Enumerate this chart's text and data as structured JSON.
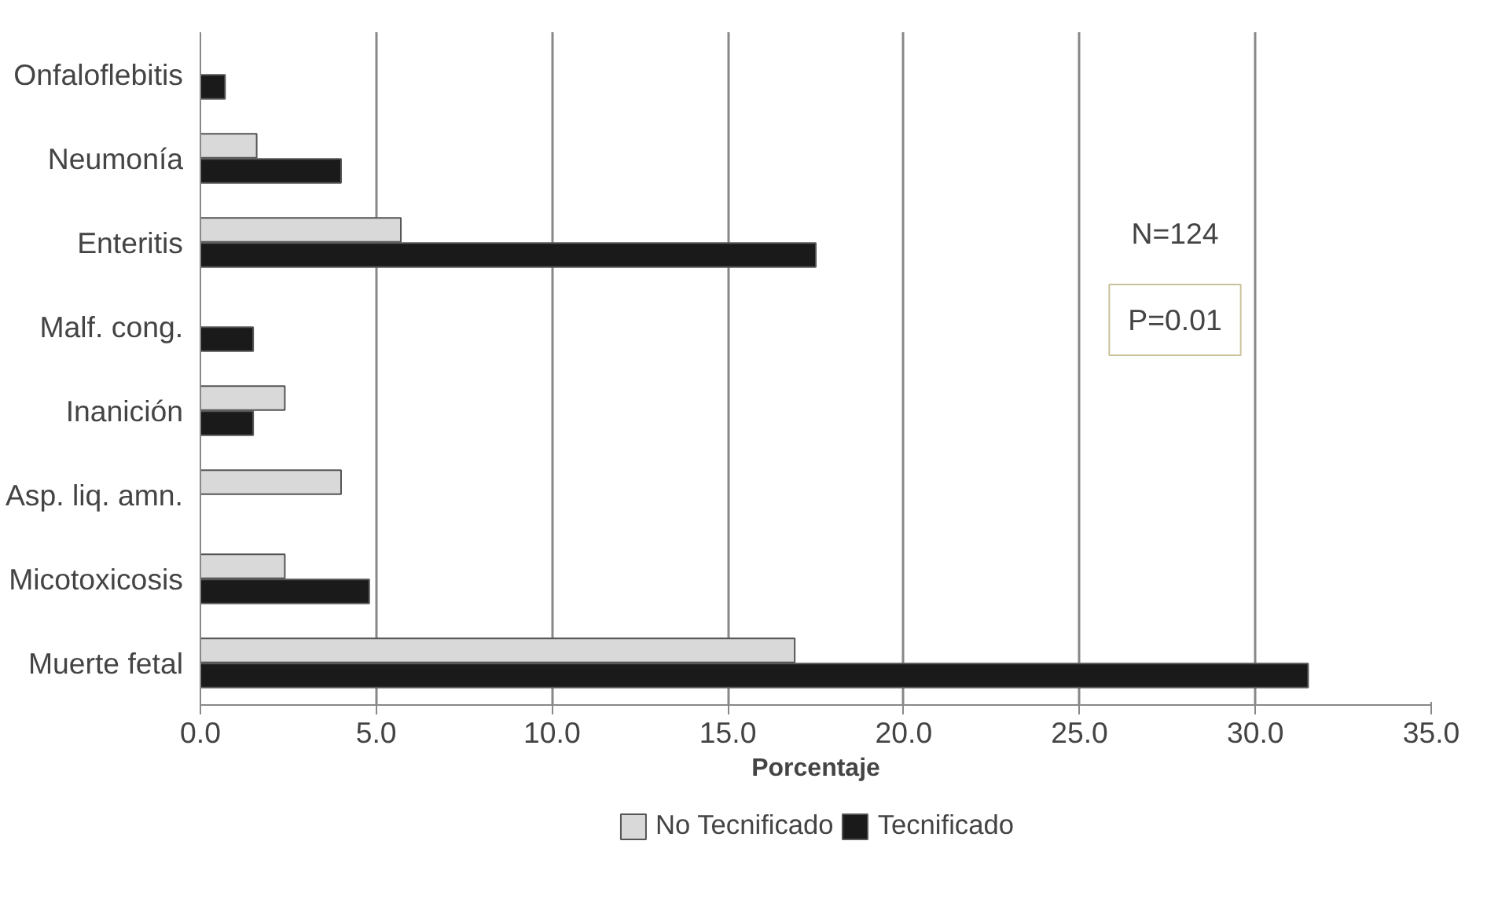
{
  "chart_data": {
    "type": "bar",
    "orientation": "horizontal",
    "xlabel": "Porcentaje",
    "categories": [
      "Onfaloflebitis",
      "Neumonía",
      "Enteritis",
      "Malf. cong.",
      "Inanición",
      "Asp. liq. amn.",
      "Micotoxicosis",
      "Muerte fetal"
    ],
    "series": [
      {
        "name": "No Tecnificado",
        "color": "#d9d9d9",
        "values": [
          null,
          1.6,
          5.7,
          null,
          2.4,
          4.0,
          2.4,
          16.9
        ]
      },
      {
        "name": "Tecnificado",
        "color": "#1a1a1a",
        "values": [
          0.7,
          4.0,
          17.5,
          1.5,
          1.5,
          null,
          4.8,
          31.5
        ]
      }
    ],
    "xlim": [
      0,
      35
    ],
    "xticks": [
      {
        "value": 0,
        "label": "0.0"
      },
      {
        "value": 5,
        "label": "5.0"
      },
      {
        "value": 10,
        "label": "10.0"
      },
      {
        "value": 15,
        "label": "15.0"
      },
      {
        "value": 20,
        "label": "20.0"
      },
      {
        "value": 25,
        "label": "25.0"
      },
      {
        "value": 30,
        "label": "30.0"
      },
      {
        "value": 35,
        "label": "35.0"
      }
    ],
    "grid": "x",
    "legend": "bottom",
    "annotations": [
      "N=124",
      "P=0.01"
    ]
  }
}
